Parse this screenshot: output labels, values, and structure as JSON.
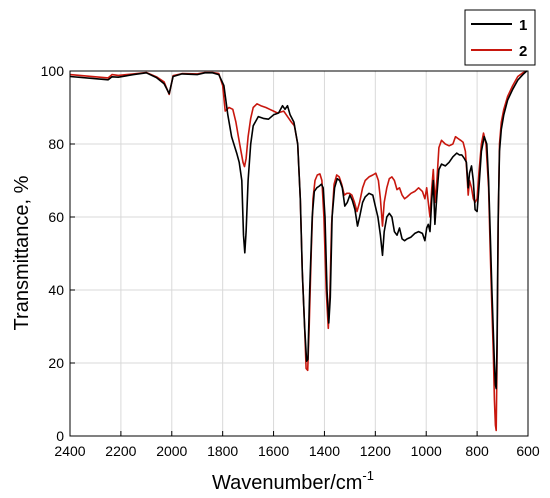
{
  "chart_data": {
    "type": "line",
    "xlabel": "Wavenumber/cm",
    "xlabel_superscript": "-1",
    "ylabel": "Transmittance, %",
    "xlim": [
      2400,
      600
    ],
    "ylim": [
      0,
      100
    ],
    "x_reversed": true,
    "grid": true,
    "legend_position": "top-right",
    "x_ticks": [
      "2400",
      "2200",
      "2000",
      "1800",
      "1600",
      "1400",
      "1200",
      "1000",
      "800",
      "600"
    ],
    "y_ticks": [
      "0",
      "20",
      "40",
      "60",
      "80",
      "100"
    ],
    "series": [
      {
        "name": "1",
        "color": "#000000",
        "points": [
          [
            2400,
            98.5
          ],
          [
            2300,
            97.9
          ],
          [
            2250,
            97.6
          ],
          [
            2235,
            98.4
          ],
          [
            2210,
            98.3
          ],
          [
            2150,
            99.0
          ],
          [
            2100,
            99.5
          ],
          [
            2060,
            98.2
          ],
          [
            2030,
            96.5
          ],
          [
            2010,
            93.8
          ],
          [
            1995,
            98.5
          ],
          [
            1960,
            99.2
          ],
          [
            1900,
            99.0
          ],
          [
            1870,
            99.5
          ],
          [
            1840,
            99.5
          ],
          [
            1815,
            99.0
          ],
          [
            1795,
            96.0
          ],
          [
            1780,
            88.0
          ],
          [
            1765,
            82.0
          ],
          [
            1745,
            77.5
          ],
          [
            1735,
            75.0
          ],
          [
            1725,
            70.0
          ],
          [
            1718,
            55.0
          ],
          [
            1713,
            50.2
          ],
          [
            1708,
            56.0
          ],
          [
            1700,
            70.0
          ],
          [
            1690,
            80.0
          ],
          [
            1680,
            85.0
          ],
          [
            1660,
            87.5
          ],
          [
            1640,
            87.0
          ],
          [
            1620,
            86.8
          ],
          [
            1600,
            88.0
          ],
          [
            1580,
            88.5
          ],
          [
            1565,
            90.5
          ],
          [
            1555,
            89.5
          ],
          [
            1545,
            90.5
          ],
          [
            1535,
            88.0
          ],
          [
            1520,
            86.0
          ],
          [
            1505,
            80.0
          ],
          [
            1495,
            65.0
          ],
          [
            1487,
            45.0
          ],
          [
            1478,
            30.0
          ],
          [
            1470,
            20.5
          ],
          [
            1465,
            21.0
          ],
          [
            1458,
            40.0
          ],
          [
            1448,
            60.0
          ],
          [
            1440,
            67.0
          ],
          [
            1430,
            68.0
          ],
          [
            1420,
            68.5
          ],
          [
            1412,
            69.0
          ],
          [
            1405,
            68.0
          ],
          [
            1398,
            60.0
          ],
          [
            1390,
            40.0
          ],
          [
            1383,
            31.0
          ],
          [
            1377,
            38.0
          ],
          [
            1370,
            60.0
          ],
          [
            1360,
            68.0
          ],
          [
            1350,
            70.5
          ],
          [
            1340,
            70.0
          ],
          [
            1330,
            68.0
          ],
          [
            1320,
            63.0
          ],
          [
            1310,
            64.0
          ],
          [
            1300,
            66.0
          ],
          [
            1290,
            64.5
          ],
          [
            1280,
            62.0
          ],
          [
            1270,
            57.5
          ],
          [
            1262,
            60.0
          ],
          [
            1250,
            64.0
          ],
          [
            1240,
            65.5
          ],
          [
            1225,
            66.5
          ],
          [
            1210,
            66.0
          ],
          [
            1200,
            63.0
          ],
          [
            1190,
            60.0
          ],
          [
            1180,
            55.0
          ],
          [
            1172,
            49.5
          ],
          [
            1165,
            56.0
          ],
          [
            1155,
            60.0
          ],
          [
            1145,
            61.0
          ],
          [
            1135,
            60.0
          ],
          [
            1125,
            56.0
          ],
          [
            1115,
            55.0
          ],
          [
            1105,
            57.0
          ],
          [
            1095,
            54.0
          ],
          [
            1085,
            53.5
          ],
          [
            1075,
            54.0
          ],
          [
            1060,
            54.5
          ],
          [
            1045,
            55.5
          ],
          [
            1030,
            56.0
          ],
          [
            1015,
            55.5
          ],
          [
            1005,
            53.5
          ],
          [
            998,
            57.0
          ],
          [
            992,
            58.0
          ],
          [
            985,
            56.0
          ],
          [
            978,
            65.0
          ],
          [
            972,
            70.0
          ],
          [
            966,
            58.0
          ],
          [
            958,
            66.0
          ],
          [
            950,
            73.0
          ],
          [
            940,
            74.5
          ],
          [
            925,
            74.0
          ],
          [
            910,
            75.0
          ],
          [
            895,
            76.5
          ],
          [
            880,
            77.5
          ],
          [
            870,
            77.0
          ],
          [
            860,
            77.0
          ],
          [
            850,
            76.0
          ],
          [
            842,
            75.0
          ],
          [
            835,
            68.0
          ],
          [
            830,
            72.0
          ],
          [
            822,
            74.0
          ],
          [
            815,
            70.0
          ],
          [
            808,
            62.0
          ],
          [
            800,
            61.5
          ],
          [
            793,
            68.0
          ],
          [
            783,
            78.0
          ],
          [
            772,
            82.0
          ],
          [
            762,
            80.0
          ],
          [
            755,
            70.0
          ],
          [
            748,
            55.0
          ],
          [
            742,
            40.0
          ],
          [
            736,
            28.0
          ],
          [
            732,
            20.0
          ],
          [
            728,
            14.0
          ],
          [
            725,
            13.0
          ],
          [
            722,
            25.0
          ],
          [
            717,
            60.0
          ],
          [
            712,
            78.0
          ],
          [
            705,
            84.0
          ],
          [
            695,
            88.0
          ],
          [
            680,
            92.0
          ],
          [
            660,
            95.0
          ],
          [
            640,
            97.5
          ],
          [
            620,
            99.0
          ],
          [
            605,
            100.0
          ]
        ]
      },
      {
        "name": "2",
        "color": "#c8170e",
        "points": [
          [
            2400,
            99.0
          ],
          [
            2300,
            98.4
          ],
          [
            2250,
            98.1
          ],
          [
            2235,
            99.0
          ],
          [
            2210,
            98.8
          ],
          [
            2150,
            99.2
          ],
          [
            2100,
            99.6
          ],
          [
            2060,
            98.4
          ],
          [
            2030,
            97.0
          ],
          [
            2010,
            93.6
          ],
          [
            1995,
            98.7
          ],
          [
            1960,
            99.3
          ],
          [
            1900,
            99.2
          ],
          [
            1870,
            99.6
          ],
          [
            1840,
            99.6
          ],
          [
            1815,
            99.3
          ],
          [
            1800,
            96.0
          ],
          [
            1790,
            89.0
          ],
          [
            1775,
            90.0
          ],
          [
            1760,
            89.5
          ],
          [
            1748,
            86.0
          ],
          [
            1738,
            82.0
          ],
          [
            1728,
            78.0
          ],
          [
            1720,
            75.0
          ],
          [
            1714,
            73.8
          ],
          [
            1708,
            76.0
          ],
          [
            1700,
            82.0
          ],
          [
            1690,
            87.0
          ],
          [
            1680,
            90.0
          ],
          [
            1665,
            91.0
          ],
          [
            1650,
            90.5
          ],
          [
            1630,
            90.0
          ],
          [
            1615,
            89.5
          ],
          [
            1600,
            89.0
          ],
          [
            1585,
            88.5
          ],
          [
            1570,
            88.8
          ],
          [
            1560,
            89.0
          ],
          [
            1545,
            87.5
          ],
          [
            1530,
            86.0
          ],
          [
            1518,
            85.0
          ],
          [
            1505,
            80.0
          ],
          [
            1495,
            65.0
          ],
          [
            1487,
            45.0
          ],
          [
            1478,
            30.0
          ],
          [
            1472,
            18.5
          ],
          [
            1466,
            18.0
          ],
          [
            1460,
            30.0
          ],
          [
            1452,
            50.0
          ],
          [
            1445,
            65.0
          ],
          [
            1437,
            70.0
          ],
          [
            1428,
            71.5
          ],
          [
            1418,
            71.8
          ],
          [
            1410,
            70.0
          ],
          [
            1402,
            60.0
          ],
          [
            1393,
            40.0
          ],
          [
            1385,
            29.5
          ],
          [
            1379,
            38.0
          ],
          [
            1372,
            58.0
          ],
          [
            1362,
            69.0
          ],
          [
            1352,
            71.5
          ],
          [
            1342,
            71.0
          ],
          [
            1332,
            69.0
          ],
          [
            1322,
            66.0
          ],
          [
            1312,
            66.5
          ],
          [
            1302,
            66.5
          ],
          [
            1292,
            66.0
          ],
          [
            1282,
            64.0
          ],
          [
            1272,
            61.5
          ],
          [
            1262,
            64.0
          ],
          [
            1250,
            68.0
          ],
          [
            1240,
            70.0
          ],
          [
            1225,
            71.0
          ],
          [
            1210,
            71.5
          ],
          [
            1198,
            72.0
          ],
          [
            1188,
            70.0
          ],
          [
            1180,
            65.0
          ],
          [
            1172,
            57.5
          ],
          [
            1165,
            64.0
          ],
          [
            1155,
            68.0
          ],
          [
            1145,
            70.5
          ],
          [
            1135,
            71.0
          ],
          [
            1125,
            70.0
          ],
          [
            1115,
            67.5
          ],
          [
            1105,
            68.0
          ],
          [
            1095,
            66.0
          ],
          [
            1085,
            65.0
          ],
          [
            1075,
            65.5
          ],
          [
            1060,
            66.5
          ],
          [
            1045,
            67.0
          ],
          [
            1030,
            68.0
          ],
          [
            1015,
            67.0
          ],
          [
            1005,
            65.0
          ],
          [
            998,
            68.0
          ],
          [
            992,
            64.0
          ],
          [
            985,
            60.0
          ],
          [
            978,
            68.0
          ],
          [
            972,
            73.0
          ],
          [
            966,
            64.0
          ],
          [
            958,
            70.0
          ],
          [
            950,
            79.0
          ],
          [
            940,
            81.0
          ],
          [
            925,
            80.0
          ],
          [
            910,
            79.5
          ],
          [
            895,
            80.0
          ],
          [
            885,
            82.0
          ],
          [
            875,
            81.5
          ],
          [
            865,
            81.0
          ],
          [
            855,
            80.5
          ],
          [
            846,
            78.0
          ],
          [
            840,
            72.0
          ],
          [
            835,
            66.0
          ],
          [
            830,
            70.0
          ],
          [
            822,
            68.0
          ],
          [
            815,
            65.0
          ],
          [
            808,
            64.0
          ],
          [
            800,
            65.0
          ],
          [
            793,
            72.0
          ],
          [
            783,
            80.0
          ],
          [
            775,
            83.0
          ],
          [
            765,
            80.0
          ],
          [
            755,
            68.0
          ],
          [
            748,
            50.0
          ],
          [
            742,
            35.0
          ],
          [
            736,
            22.0
          ],
          [
            732,
            10.0
          ],
          [
            728,
            3.0
          ],
          [
            725,
            1.5
          ],
          [
            722,
            20.0
          ],
          [
            717,
            58.0
          ],
          [
            712,
            80.0
          ],
          [
            705,
            86.0
          ],
          [
            695,
            89.5
          ],
          [
            680,
            93.0
          ],
          [
            660,
            96.0
          ],
          [
            640,
            98.5
          ],
          [
            620,
            99.5
          ],
          [
            605,
            100.0
          ]
        ]
      }
    ]
  }
}
